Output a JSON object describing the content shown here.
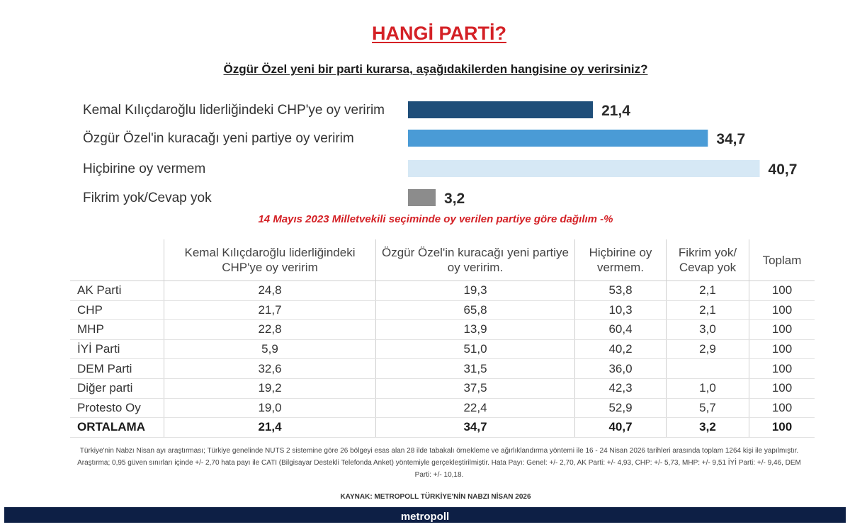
{
  "title": "HANGİ PARTİ?",
  "question": "Özgür Özel yeni bir parti kurarsa, aşağıdakilerden hangisine oy verirsiniz?",
  "chart_data": [
    {
      "type": "bar",
      "orientation": "horizontal",
      "title": "HANGİ PARTİ?",
      "categories": [
        "Kemal Kılıçdaroğlu liderliğindeki CHP'ye oy veririm",
        "Özgür Özel'in kuracağı yeni partiye oy veririm",
        "Hiçbirine oy vermem",
        "Fikrim yok/Cevap yok"
      ],
      "values": [
        21.4,
        34.7,
        40.7,
        3.2
      ],
      "value_labels": [
        "21,4",
        "34,7",
        "40,7",
        "3,2"
      ],
      "colors": [
        "#1f4e79",
        "#4a9bd6",
        "#d6e8f5",
        "#8c8c8c"
      ],
      "xlim": [
        0,
        45
      ],
      "grid": false
    },
    {
      "type": "table",
      "title": "14 Mayıs 2023 Milletvekili seçiminde oy verilen partiye göre dağılım -%",
      "columns": [
        "",
        "Kemal Kılıçdaroğlu liderliğindeki CHP'ye oy veririm",
        "Özgür Özel'in kuracağı yeni partiye oy veririm.",
        "Hiçbirine oy vermem.",
        "Fikrim yok/ Cevap yok",
        "Toplam"
      ],
      "rows": [
        [
          "AK Parti",
          "24,8",
          "19,3",
          "53,8",
          "2,1",
          "100"
        ],
        [
          "CHP",
          "21,7",
          "65,8",
          "10,3",
          "2,1",
          "100"
        ],
        [
          "MHP",
          "22,8",
          "13,9",
          "60,4",
          "3,0",
          "100"
        ],
        [
          "İYİ Parti",
          "5,9",
          "51,0",
          "40,2",
          "2,9",
          "100"
        ],
        [
          "DEM Parti",
          "32,6",
          "31,5",
          "36,0",
          "",
          "100"
        ],
        [
          "Diğer parti",
          "19,2",
          "37,5",
          "42,3",
          "1,0",
          "100"
        ],
        [
          "Protesto Oy",
          "19,0",
          "22,4",
          "52,9",
          "5,7",
          "100"
        ]
      ],
      "average_row": [
        "ORTALAMA",
        "21,4",
        "34,7",
        "40,7",
        "3,2",
        "100"
      ]
    }
  ],
  "footnote": "Türkiye'nin Nabzı Nisan ayı araştırması; Türkiye genelinde NUTS 2 sistemine göre 26 bölgeyi esas alan 28 ilde tabakalı örnekleme ve ağırlıklandırma yöntemi ile 16 - 24 Nisan 2026 tarihleri arasında toplam 1264 kişi ile yapılmıştır. Araştırma; 0,95 güven sınırları içinde +/- 2,70 hata payı ile CATI (Bilgisayar Destekli Telefonda Anket) yöntemiyle gerçekleştirilmiştir. Hata Payı: Genel: +/- 2,70, AK Parti: +/- 4,93, CHP: +/- 5,73, MHP: +/- 9,51 İYİ Parti: +/- 9,46, DEM Parti: +/- 10,18.",
  "source": "KAYNAK: METROPOLL TÜRKİYE'NİN NABZI NİSAN 2026",
  "brand": "metropoll"
}
